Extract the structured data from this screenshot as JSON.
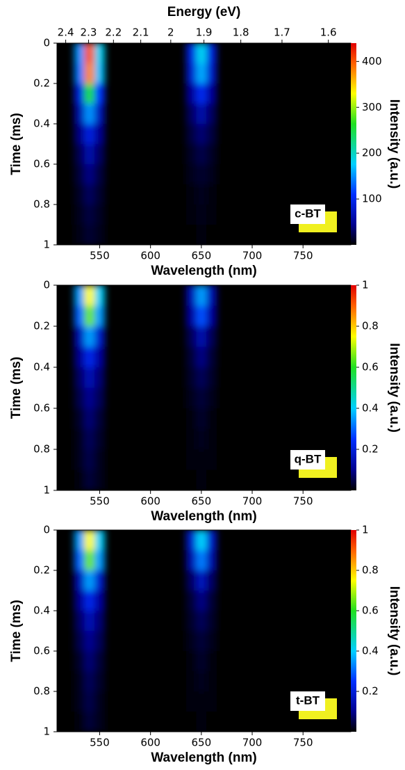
{
  "chart_data": [
    {
      "type": "heatmap",
      "x2label": "Energy (eV)",
      "x2ticks": [
        2.4,
        2.3,
        2.2,
        2.1,
        2,
        1.9,
        1.8,
        1.7,
        1.6
      ],
      "xlabel": "Wavelength (nm)",
      "ylabel": "Time (ms)",
      "colorbar_label": "Intensity (a.u.)",
      "label": "c-BT",
      "xlim": [
        508,
        797
      ],
      "xticks": [
        550,
        600,
        650,
        700,
        750
      ],
      "ylim": [
        0,
        1
      ],
      "yticks": [
        0,
        0.2,
        0.4,
        0.6,
        0.8,
        1
      ],
      "zlim": [
        0,
        440
      ],
      "zticks": [
        100,
        200,
        300,
        400
      ],
      "x": [
        530,
        540,
        550,
        640,
        650,
        660
      ],
      "y": [
        0.05,
        0.15,
        0.25,
        0.35,
        0.45,
        0.55,
        0.65,
        0.75,
        0.85,
        0.95
      ],
      "z": [
        [
          150,
          400,
          180,
          90,
          180,
          90
        ],
        [
          140,
          380,
          170,
          80,
          160,
          80
        ],
        [
          90,
          250,
          110,
          50,
          100,
          50
        ],
        [
          60,
          150,
          70,
          30,
          60,
          30
        ],
        [
          40,
          90,
          45,
          20,
          35,
          20
        ],
        [
          25,
          60,
          30,
          12,
          22,
          12
        ],
        [
          18,
          40,
          20,
          8,
          14,
          8
        ],
        [
          12,
          28,
          14,
          5,
          9,
          5
        ],
        [
          8,
          20,
          10,
          3,
          6,
          3
        ],
        [
          6,
          15,
          8,
          2,
          4,
          2
        ]
      ]
    },
    {
      "type": "heatmap",
      "xlabel": "Wavelength (nm)",
      "ylabel": "Time (ms)",
      "colorbar_label": "Intensity (a.u.)",
      "label": "q-BT",
      "xlim": [
        508,
        797
      ],
      "xticks": [
        550,
        600,
        650,
        700,
        750
      ],
      "ylim": [
        0,
        1
      ],
      "yticks": [
        0,
        0.2,
        0.4,
        0.6,
        0.8,
        1
      ],
      "zlim": [
        0,
        1
      ],
      "zticks": [
        0.2,
        0.4,
        0.6,
        0.8,
        1
      ],
      "x": [
        530,
        540,
        550,
        640,
        650,
        660
      ],
      "y": [
        0.05,
        0.15,
        0.25,
        0.35,
        0.45,
        0.55,
        0.65,
        0.75,
        0.85,
        0.95
      ],
      "z": [
        [
          0.35,
          0.75,
          0.4,
          0.15,
          0.35,
          0.15
        ],
        [
          0.3,
          0.65,
          0.35,
          0.12,
          0.28,
          0.12
        ],
        [
          0.15,
          0.35,
          0.18,
          0.06,
          0.14,
          0.06
        ],
        [
          0.1,
          0.22,
          0.12,
          0.04,
          0.09,
          0.04
        ],
        [
          0.07,
          0.15,
          0.08,
          0.03,
          0.06,
          0.03
        ],
        [
          0.05,
          0.1,
          0.06,
          0.02,
          0.04,
          0.02
        ],
        [
          0.03,
          0.08,
          0.04,
          0.01,
          0.03,
          0.01
        ],
        [
          0.02,
          0.06,
          0.03,
          0.01,
          0.02,
          0.01
        ],
        [
          0.02,
          0.05,
          0.02,
          0.01,
          0.01,
          0.01
        ],
        [
          0.01,
          0.04,
          0.02,
          0,
          0.01,
          0
        ]
      ]
    },
    {
      "type": "heatmap",
      "xlabel": "Wavelength (nm)",
      "ylabel": "Time (ms)",
      "colorbar_label": "Intensity (a.u.)",
      "label": "t-BT",
      "xlim": [
        508,
        797
      ],
      "xticks": [
        550,
        600,
        650,
        700,
        750
      ],
      "ylim": [
        0,
        1
      ],
      "yticks": [
        0,
        0.2,
        0.4,
        0.6,
        0.8,
        1
      ],
      "zlim": [
        0,
        1
      ],
      "zticks": [
        0.2,
        0.4,
        0.6,
        0.8,
        1
      ],
      "x": [
        530,
        540,
        550,
        640,
        650,
        660
      ],
      "y": [
        0.05,
        0.15,
        0.25,
        0.35,
        0.45,
        0.55,
        0.65,
        0.75,
        0.85,
        0.95
      ],
      "z": [
        [
          0.35,
          0.75,
          0.4,
          0.18,
          0.4,
          0.18
        ],
        [
          0.3,
          0.65,
          0.35,
          0.14,
          0.32,
          0.14
        ],
        [
          0.15,
          0.35,
          0.18,
          0.07,
          0.16,
          0.07
        ],
        [
          0.1,
          0.22,
          0.12,
          0.04,
          0.09,
          0.04
        ],
        [
          0.07,
          0.15,
          0.08,
          0.03,
          0.06,
          0.03
        ],
        [
          0.05,
          0.1,
          0.06,
          0.02,
          0.04,
          0.02
        ],
        [
          0.03,
          0.08,
          0.04,
          0.01,
          0.03,
          0.01
        ],
        [
          0.02,
          0.06,
          0.03,
          0.01,
          0.02,
          0.01
        ],
        [
          0.02,
          0.05,
          0.02,
          0.01,
          0.01,
          0.01
        ],
        [
          0.01,
          0.04,
          0.02,
          0,
          0.01,
          0
        ]
      ]
    }
  ]
}
